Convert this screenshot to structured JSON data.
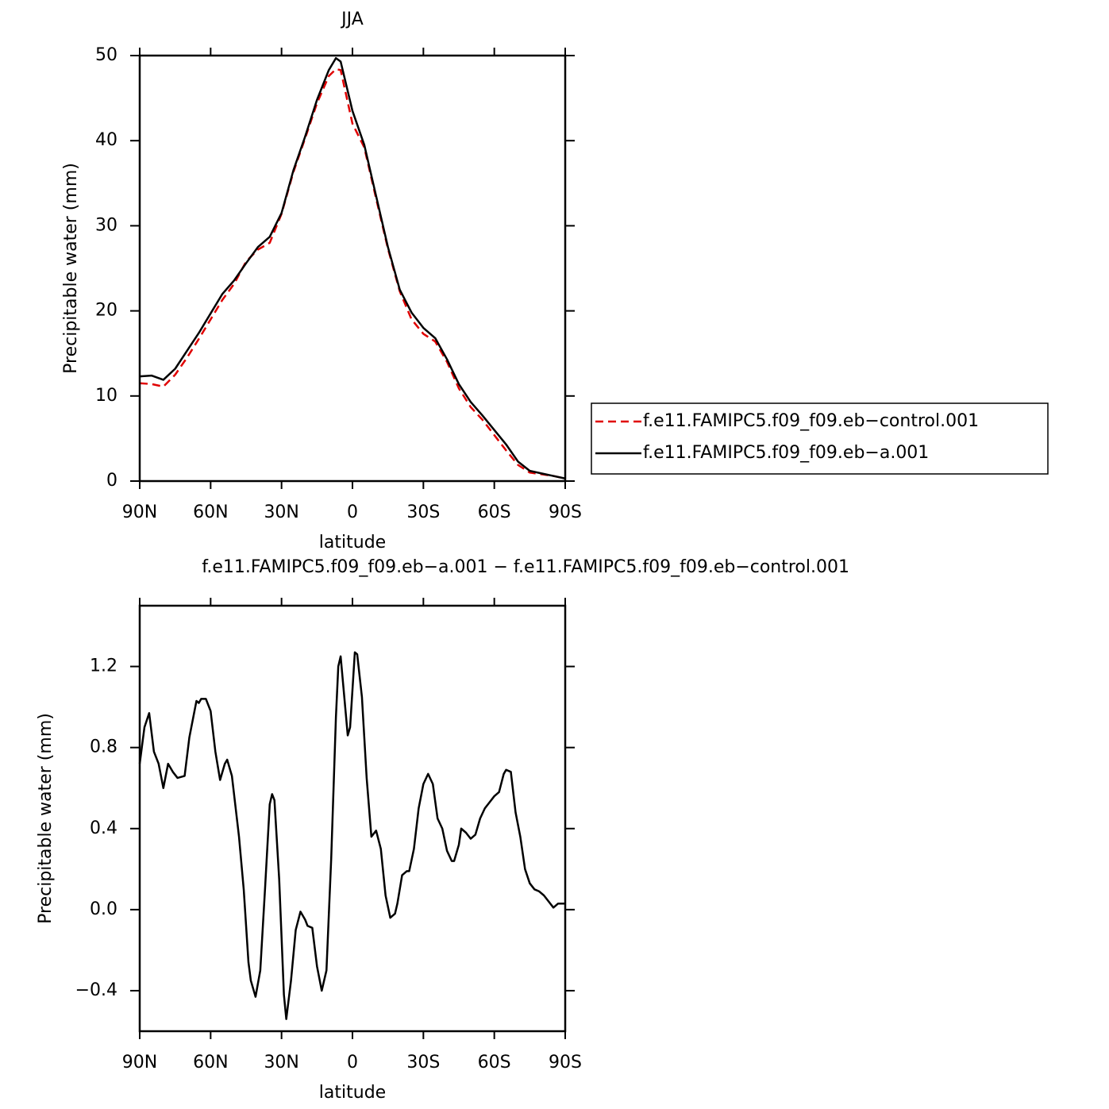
{
  "chart_data": [
    {
      "type": "line",
      "title": "JJA",
      "xlabel": "latitude",
      "ylabel": "Precipitable water (mm)",
      "x": [
        90,
        85,
        80,
        75,
        70,
        65,
        60,
        55,
        50,
        45,
        40,
        35,
        30,
        25,
        20,
        15,
        10,
        7,
        5,
        0,
        -5,
        -10,
        -15,
        -20,
        -25,
        -30,
        -35,
        -40,
        -45,
        -50,
        -55,
        -60,
        -65,
        -70,
        -75,
        -80,
        -85,
        -90
      ],
      "series": [
        {
          "name": "f.e11.FAMIPC5.f09_f09.eb−control.001",
          "color": "#e00000",
          "line_style": "dashed",
          "values": [
            11.5,
            11.4,
            11.1,
            12.5,
            14.5,
            16.7,
            19.0,
            21.3,
            23.2,
            25.8,
            27.2,
            28.0,
            31.4,
            36.3,
            40.3,
            44.4,
            47.6,
            48.4,
            48.3,
            42.0,
            39.2,
            33.2,
            27.3,
            22.3,
            19.0,
            17.3,
            16.4,
            14.0,
            10.9,
            8.7,
            7.2,
            5.4,
            3.6,
            1.9,
            1.0,
            0.8,
            0.6,
            0.3
          ]
        },
        {
          "name": "f.e11.FAMIPC5.f09_f09.eb−a.001",
          "color": "#000000",
          "line_style": "solid",
          "values": [
            12.3,
            12.4,
            11.9,
            13.2,
            15.3,
            17.4,
            19.7,
            22.0,
            23.6,
            25.6,
            27.5,
            28.7,
            31.5,
            36.5,
            40.5,
            44.8,
            48.3,
            49.7,
            49.3,
            43.5,
            39.5,
            33.5,
            27.5,
            22.5,
            19.8,
            18.0,
            16.8,
            14.3,
            11.4,
            9.3,
            7.7,
            6.0,
            4.3,
            2.3,
            1.2,
            0.9,
            0.6,
            0.3
          ]
        }
      ],
      "xlim": [
        90,
        -90
      ],
      "xticks": [
        {
          "value": 90,
          "label": "90N"
        },
        {
          "value": 60,
          "label": "60N"
        },
        {
          "value": 30,
          "label": "30N"
        },
        0,
        {
          "value": -30,
          "label": "30S"
        },
        {
          "value": -60,
          "label": "60S"
        },
        {
          "value": -90,
          "label": "90S"
        }
      ],
      "ylim": [
        0,
        50
      ],
      "yticks": [
        0,
        10,
        20,
        30,
        40,
        50
      ],
      "legend": "outside-right"
    },
    {
      "type": "line",
      "title": "f.e11.FAMIPC5.f09_f09.eb−a.001 − f.e11.FAMIPC5.f09_f09.eb−control.001",
      "xlabel": "latitude",
      "ylabel": "Precipitable water (mm)",
      "x": [
        90,
        88,
        86,
        84,
        82,
        80,
        78,
        76,
        74,
        71,
        69,
        66,
        65,
        64,
        62,
        60,
        58,
        56,
        54,
        53,
        51,
        48,
        46,
        44,
        43,
        41,
        39,
        37,
        35,
        34,
        33,
        31,
        29,
        28,
        26,
        24,
        22,
        20,
        19,
        17,
        15,
        13,
        11,
        9,
        7,
        6,
        5,
        4,
        2,
        1,
        -1,
        -2,
        -4,
        -6,
        -8,
        -10,
        -12,
        -14,
        -16,
        -18,
        -19,
        -21,
        -23,
        -24,
        -26,
        -28,
        -30,
        -32,
        -34,
        -36,
        -38,
        -40,
        -42,
        -43,
        -45,
        -46,
        -48,
        -50,
        -52,
        -54,
        -56,
        -58,
        -60,
        -62,
        -64,
        -65,
        -67,
        -69,
        -71,
        -73,
        -75,
        -77,
        -79,
        -81,
        -83,
        -85,
        -87,
        -89,
        -90
      ],
      "values": [
        0.72,
        0.9,
        0.97,
        0.78,
        0.72,
        0.6,
        0.72,
        0.68,
        0.65,
        0.66,
        0.85,
        1.03,
        1.02,
        1.04,
        1.04,
        0.98,
        0.78,
        0.64,
        0.72,
        0.74,
        0.66,
        0.36,
        0.1,
        -0.26,
        -0.35,
        -0.43,
        -0.3,
        0.1,
        0.52,
        0.57,
        0.54,
        0.15,
        -0.42,
        -0.54,
        -0.35,
        -0.1,
        -0.01,
        -0.05,
        -0.08,
        -0.09,
        -0.28,
        -0.4,
        -0.3,
        0.25,
        0.95,
        1.2,
        1.25,
        1.12,
        0.86,
        0.9,
        1.27,
        1.26,
        1.05,
        0.65,
        0.36,
        0.39,
        0.3,
        0.07,
        -0.04,
        -0.02,
        0.03,
        0.17,
        0.19,
        0.19,
        0.3,
        0.5,
        0.62,
        0.67,
        0.62,
        0.45,
        0.4,
        0.29,
        0.24,
        0.24,
        0.32,
        0.4,
        0.38,
        0.35,
        0.37,
        0.45,
        0.5,
        0.53,
        0.56,
        0.58,
        0.67,
        0.69,
        0.68,
        0.48,
        0.36,
        0.2,
        0.13,
        0.1,
        0.09,
        0.07,
        0.04,
        0.01,
        0.03,
        0.03,
        0.03
      ],
      "color": "#000000",
      "line_style": "solid",
      "xlim": [
        90,
        -90
      ],
      "xticks": [
        {
          "value": 90,
          "label": "90N"
        },
        {
          "value": 60,
          "label": "60N"
        },
        {
          "value": 30,
          "label": "30N"
        },
        0,
        {
          "value": -30,
          "label": "30S"
        },
        {
          "value": -60,
          "label": "60S"
        },
        {
          "value": -90,
          "label": "90S"
        }
      ],
      "ylim": [
        -0.6,
        1.5
      ],
      "yticks": [
        {
          "value": -0.4,
          "label": "−0.4"
        },
        {
          "value": 0,
          "label": "0.0"
        },
        0.4,
        0.8,
        1.2
      ]
    }
  ]
}
